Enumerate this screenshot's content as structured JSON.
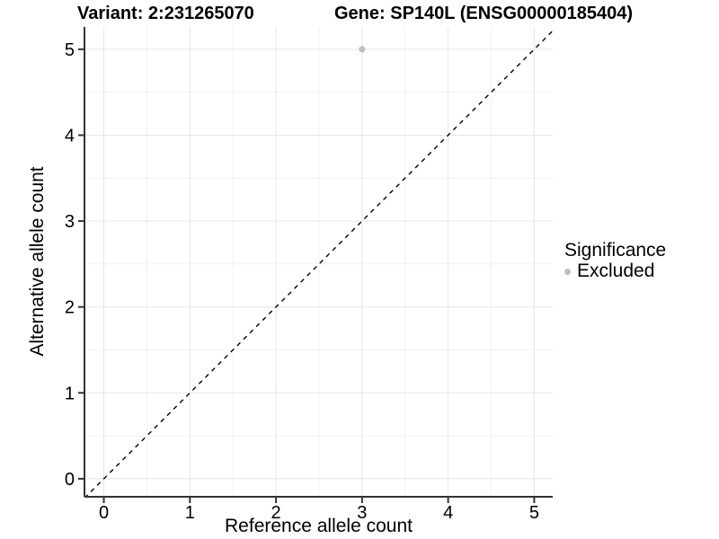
{
  "header": {
    "title_left": "Variant: 2:231265070",
    "title_right": "Gene: SP140L (ENSG00000185404)"
  },
  "legend": {
    "title": "Significance",
    "items": [
      {
        "label": "Excluded",
        "color": "#bebebe"
      }
    ]
  },
  "chart_data": {
    "type": "scatter",
    "title": "Variant: 2:231265070 — Gene: SP140L (ENSG00000185404)",
    "xlabel": "Reference allele count",
    "ylabel": "Alternative allele count",
    "x_ticks": [
      0,
      1,
      2,
      3,
      4,
      5
    ],
    "y_ticks": [
      0,
      1,
      2,
      3,
      4,
      5
    ],
    "xlim": [
      -0.225,
      5.215
    ],
    "ylim": [
      -0.21,
      5.26
    ],
    "minor_step": 0.5,
    "grid": true,
    "legend_position": "right",
    "series": [
      {
        "name": "Excluded",
        "color": "#bebebe",
        "points": [
          {
            "x": 3,
            "y": 5
          }
        ]
      }
    ],
    "reference_line": {
      "kind": "abline",
      "slope": 1,
      "intercept": 0,
      "style": "dashed",
      "color": "#000000"
    },
    "style_colors": {
      "grid_major": "#e7e7e7",
      "grid_minor": "#f2f2f2",
      "axis_line": "#333333",
      "tick_mark": "#333333",
      "tick_label": "#000000"
    }
  }
}
